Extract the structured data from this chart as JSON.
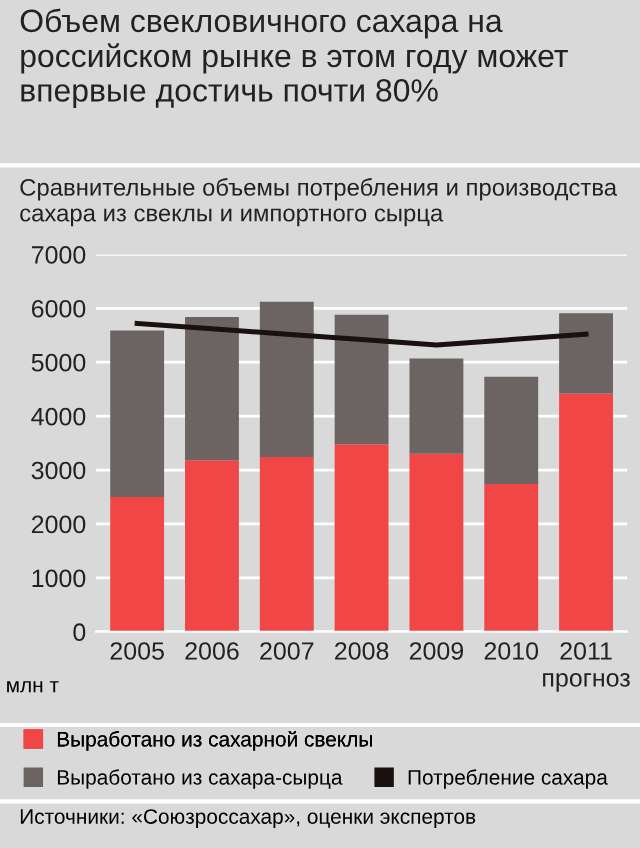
{
  "chart_data": {
    "type": "bar",
    "stacked": true,
    "title": "Объем свекловичного сахара на российском рынке в этом году может впервые достичь почти 80%",
    "subtitle": "Сравнительные объемы потребления и производства сахара из свеклы и импортного сырца",
    "ylabel": "млн т",
    "categories": [
      "2005",
      "2006",
      "2007",
      "2008",
      "2009",
      "2010",
      "2011\nпрогноз"
    ],
    "series": [
      {
        "name": "Выработано из сахарной свеклы",
        "color": "#f04646",
        "values": [
          2500,
          3180,
          3240,
          3480,
          3300,
          2740,
          4420
        ]
      },
      {
        "name": "Выработано из сахара-сырца",
        "color": "#6b6462",
        "values": [
          3090,
          2660,
          2880,
          2400,
          1770,
          1990,
          1490
        ]
      },
      {
        "name": "Потребление сахара",
        "type": "line",
        "color": "#1a1010",
        "values": [
          5720,
          5620,
          5520,
          5420,
          5320,
          5420,
          5520
        ]
      }
    ],
    "ylim": [
      0,
      7000
    ],
    "yticks": [
      0,
      1000,
      2000,
      3000,
      4000,
      5000,
      6000,
      7000
    ],
    "grid": "y",
    "legend": "bottom",
    "annotations": [
      "Источники: «Союзроссахар», оценки экспертов"
    ]
  }
}
